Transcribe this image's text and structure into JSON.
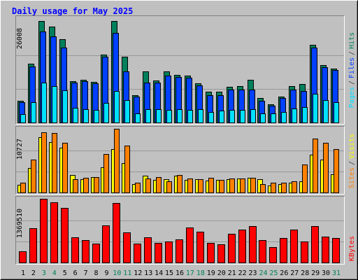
{
  "title": "Daily usage for May 2025",
  "chart_data": [
    {
      "type": "bar",
      "legend_separator": "/",
      "ylim": [
        0,
        26008
      ],
      "yticks": [
        26008
      ],
      "series": [
        {
          "name": "Hits",
          "color": "#00805c",
          "values": [
            5700,
            15142,
            26008,
            24583,
            21377,
            10688,
            11045,
            10510,
            17457,
            26008,
            16923,
            7125,
            13182,
            10866,
            13182,
            12291,
            12113,
            10154,
            8016,
            8016,
            9263,
            9441,
            11045,
            6413,
            4810,
            6769,
            9441,
            9976,
            19951,
            14785,
            13895
          ]
        },
        {
          "name": "Files",
          "color": "#0040ff",
          "values": [
            5344,
            14429,
            23336,
            22089,
            19239,
            10332,
            10688,
            10154,
            16923,
            22980,
            13182,
            6769,
            10332,
            10332,
            12113,
            11757,
            11579,
            9619,
            7125,
            7125,
            8551,
            8551,
            8551,
            5700,
            4453,
            6413,
            8551,
            8194,
            19239,
            14251,
            13539
          ]
        },
        {
          "name": "Pages",
          "color": "#00e0ff",
          "values": [
            2316,
            5344,
            10332,
            9441,
            8372,
            3919,
            3563,
            3385,
            5166,
            8194,
            5879,
            2494,
            3563,
            3563,
            3385,
            3563,
            3385,
            3563,
            2850,
            3207,
            3385,
            3385,
            3563,
            2494,
            2494,
            2850,
            3741,
            4097,
            7482,
            5879,
            5344
          ]
        }
      ]
    },
    {
      "type": "bar",
      "legend_separator": "/",
      "ylim": [
        0,
        10727
      ],
      "yticks": [
        10727
      ],
      "series": [
        {
          "name": "Visits",
          "color": "#ffff00",
          "values": [
            1415,
            4244,
            9312,
            8487,
            7544,
            3065,
            2358,
            2711,
            4361,
            7308,
            5069,
            1532,
            2947,
            2240,
            2358,
            2947,
            2240,
            2358,
            2122,
            2240,
            2358,
            2475,
            2593,
            2358,
            1297,
            1532,
            1768,
            2004,
            6365,
            5540,
            3183
          ]
        },
        {
          "name": "Sites",
          "color": "#ff8000",
          "values": [
            1768,
            5540,
            10137,
            10019,
            8369,
            2358,
            2593,
            2711,
            6483,
            10727,
            7898,
            1768,
            2475,
            2711,
            2004,
            3065,
            2475,
            2358,
            2593,
            2240,
            2475,
            2475,
            2593,
            1532,
            1768,
            1768,
            2004,
            4833,
            9076,
            8369,
            7308
          ]
        }
      ]
    },
    {
      "type": "bar",
      "ylim": [
        0,
        1369510
      ],
      "yticks": [
        1369510
      ],
      "categories": [
        "1",
        "2",
        "3",
        "4",
        "5",
        "6",
        "7",
        "8",
        "9",
        "10",
        "11",
        "12",
        "13",
        "14",
        "15",
        "16",
        "17",
        "18",
        "19",
        "20",
        "21",
        "22",
        "23",
        "24",
        "25",
        "26",
        "27",
        "28",
        "29",
        "30",
        "31"
      ],
      "category_colors": [
        "#000000",
        "#000000",
        "#00805c",
        "#00805c",
        "#000000",
        "#000000",
        "#000000",
        "#000000",
        "#000000",
        "#00805c",
        "#00805c",
        "#000000",
        "#000000",
        "#000000",
        "#000000",
        "#000000",
        "#00805c",
        "#00805c",
        "#000000",
        "#000000",
        "#000000",
        "#000000",
        "#000000",
        "#00805c",
        "#00805c",
        "#000000",
        "#000000",
        "#000000",
        "#000000",
        "#000000",
        "#00805c"
      ],
      "series": [
        {
          "name": "KBytes",
          "color": "#ff0000",
          "values": [
            255843,
            737430,
            1369510,
            1294266,
            1173869,
            556837,
            496638,
            421390,
            797627,
            1279218,
            662184,
            421390,
            556837,
            436440,
            466540,
            511688,
            752477,
            677230,
            436440,
            406340,
            632085,
            707329,
            782577,
            496638,
            346142,
            541788,
            707329,
            466540,
            782577,
            571887,
            541788
          ]
        }
      ]
    }
  ]
}
